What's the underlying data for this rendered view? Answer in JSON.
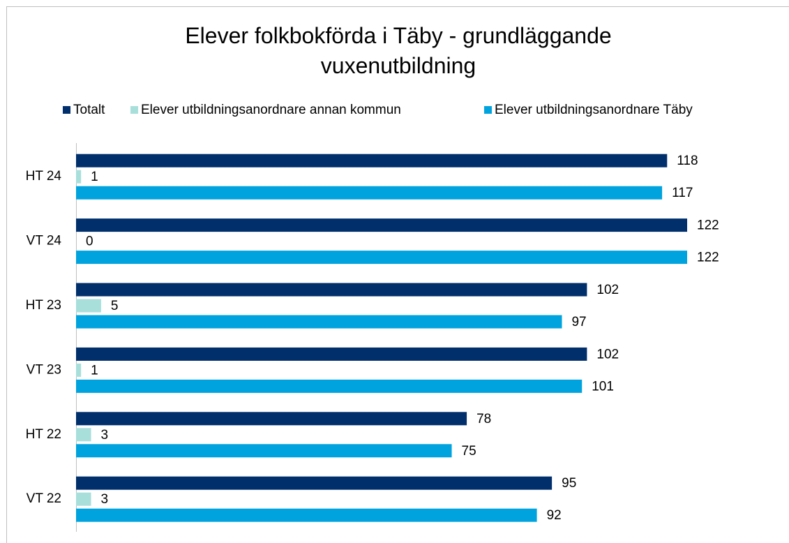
{
  "chart_data": {
    "type": "hbar",
    "title": "Elever folkbokförda i Täby - grundläggande vuxenutbildning",
    "categories": [
      "HT 24",
      "VT 24",
      "HT 23",
      "VT 23",
      "HT 22",
      "VT 22"
    ],
    "series": [
      {
        "name": "Totalt",
        "color": "#002f6c",
        "values": [
          118,
          122,
          102,
          102,
          78,
          95
        ]
      },
      {
        "name": "Elever utbildningsanordnare annan kommun",
        "color": "#a8dfdb",
        "values": [
          1,
          0,
          5,
          1,
          3,
          3
        ]
      },
      {
        "name": "Elever utbildningsanordnare Täby",
        "color": "#00a3de",
        "values": [
          117,
          122,
          97,
          101,
          75,
          92
        ]
      }
    ],
    "legend": "top"
  }
}
